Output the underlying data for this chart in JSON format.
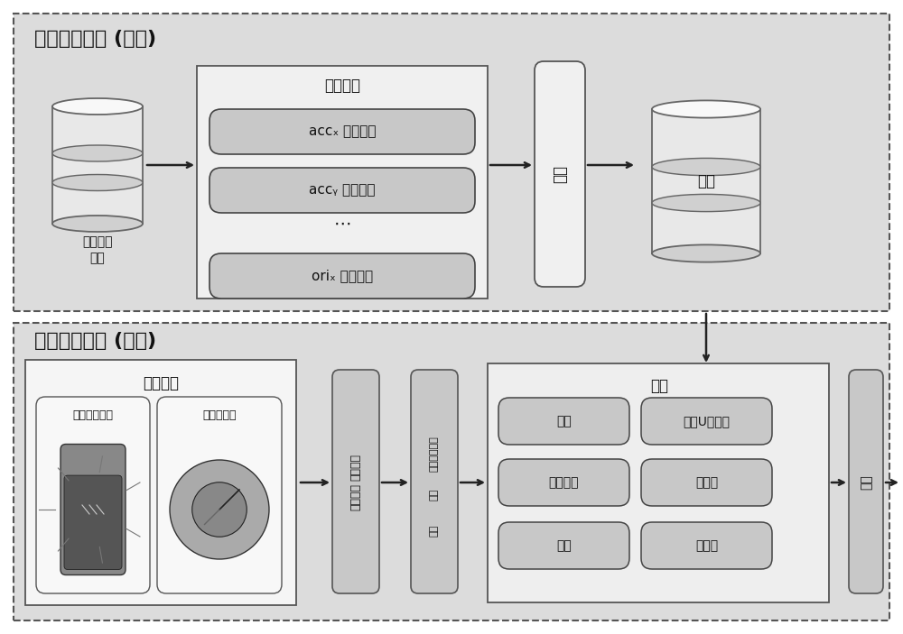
{
  "bg_color": "#dcdcdc",
  "white": "#ffffff",
  "light_gray": "#ebebeb",
  "mid_gray": "#c8c8c8",
  "dark_gray": "#aaaaaa",
  "train_box_color": "#e8e8e8",
  "feat_box_color": "#b8b8b8",
  "text_color": "#111111",
  "top_title": "驾驶行为建模 (离线)",
  "bottom_title": "监控驾驶行为 (在线)",
  "feature_title": "特征提取",
  "data_label1": "收集到的",
  "data_label2": "数据",
  "train_label": "训练",
  "model_label": "模型",
  "feat1": "accₓ 的最大値",
  "feat2": "accᵧ 的最小値",
  "feat3": "oriₓ 的标准差",
  "data_sense_title": "数据感知",
  "sensor1": "加速度传感器",
  "sensor2": "方向传感器",
  "recog_title": "识别",
  "behav1_line1": "行为实时",
  "behav1_line2": "监控计算",
  "behav2_line1": "异常驾驶行为",
  "behav2_line2": "检测",
  "alert_label": "报警",
  "r1": "蛇形",
  "r2": "急速变向",
  "r3": "侧滑",
  "r4": "急速U型转彏",
  "r5": "急刺车",
  "r6": "急转彏"
}
